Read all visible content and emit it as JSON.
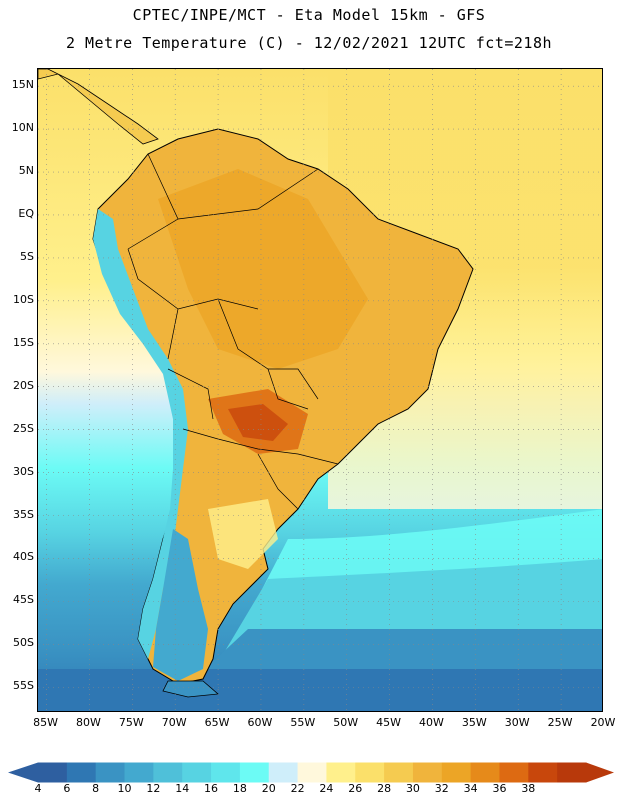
{
  "header": {
    "line1": "CPTEC/INPE/MCT -  Eta Model 15km - GFS",
    "line2": "2 Metre Temperature (C) - 12/02/2021 12UTC fct=218h"
  },
  "map": {
    "lat_labels": [
      "15N",
      "10N",
      "5N",
      "EQ",
      "5S",
      "10S",
      "15S",
      "20S",
      "25S",
      "30S",
      "35S",
      "40S",
      "45S",
      "50S",
      "55S"
    ],
    "lon_labels": [
      "85W",
      "80W",
      "75W",
      "70W",
      "65W",
      "60W",
      "55W",
      "50W",
      "45W",
      "40W",
      "35W",
      "30W",
      "25W",
      "20W"
    ],
    "lat_range": [
      17,
      -58
    ],
    "lon_range": [
      -86,
      -20
    ],
    "grid": "dotted"
  },
  "colorbar": {
    "labels": [
      "4",
      "6",
      "8",
      "10",
      "12",
      "14",
      "16",
      "18",
      "20",
      "22",
      "24",
      "26",
      "28",
      "30",
      "32",
      "34",
      "36",
      "38"
    ],
    "colors": [
      "#2e5fa0",
      "#2f77b3",
      "#3a93c3",
      "#43a9cf",
      "#4fc0d9",
      "#57d3e2",
      "#5fe6ec",
      "#6cfbf5",
      "#cfeefa",
      "#fff8dc",
      "#fff08c",
      "#fbe06a",
      "#f5cb50",
      "#f0b43c",
      "#eca526",
      "#e68a1a",
      "#dd6a12",
      "#c8470c",
      "#b8390b"
    ]
  }
}
